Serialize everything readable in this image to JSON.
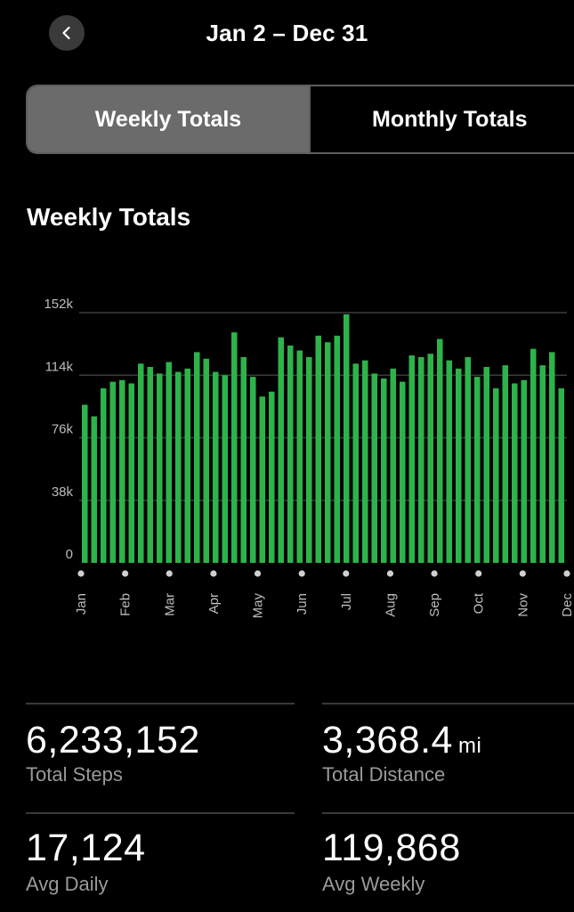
{
  "header": {
    "back_icon": "chevron-left-icon",
    "date_range": "Jan 2 – Dec 31"
  },
  "tabs": [
    {
      "label": "Weekly Totals",
      "active": true
    },
    {
      "label": "Monthly Totals",
      "active": false
    }
  ],
  "section_title": "Weekly Totals",
  "chart_data": {
    "type": "bar",
    "color": "#2db34a",
    "ylim": [
      0,
      152000
    ],
    "y_ticks": [
      "0",
      "38k",
      "76k",
      "114k",
      "152k"
    ],
    "y_tick_values": [
      0,
      38000,
      76000,
      114000,
      152000
    ],
    "x_tick_labels": [
      "Jan",
      "Feb",
      "Mar",
      "Apr",
      "May",
      "Jun",
      "Jul",
      "Aug",
      "Sep",
      "Oct",
      "Nov",
      "Dec"
    ],
    "values": [
      96000,
      89000,
      106000,
      110000,
      111000,
      109000,
      121000,
      119000,
      115000,
      122000,
      116000,
      118000,
      128000,
      124000,
      116000,
      114000,
      140000,
      125000,
      113000,
      101000,
      104000,
      137000,
      132000,
      129000,
      125000,
      138000,
      134000,
      138000,
      151000,
      121000,
      123000,
      115000,
      112000,
      118000,
      110000,
      126000,
      125000,
      127000,
      136000,
      123000,
      118000,
      125000,
      113000,
      119000,
      106000,
      120000,
      109000,
      111000,
      130000,
      120000,
      128000,
      106000
    ]
  },
  "stats": {
    "total_steps": {
      "value": "6,233,152",
      "label": "Total Steps"
    },
    "total_distance": {
      "value": "3,368.4",
      "unit": "mi",
      "label": "Total Distance"
    },
    "avg_daily": {
      "value": "17,124",
      "label": "Avg Daily"
    },
    "avg_weekly": {
      "value": "119,868",
      "label": "Avg Weekly"
    }
  }
}
